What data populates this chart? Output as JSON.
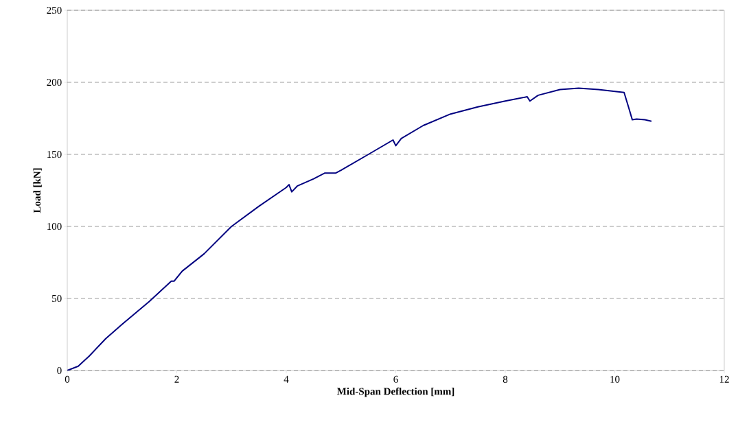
{
  "chart_data": {
    "type": "line",
    "xlabel": "Mid-Span Deflection [mm]",
    "ylabel": "Load [kN]",
    "xlim": [
      0,
      12
    ],
    "ylim": [
      0,
      250
    ],
    "xticks": [
      0,
      2,
      4,
      6,
      8,
      10,
      12
    ],
    "yticks": [
      0,
      50,
      100,
      150,
      200,
      250
    ],
    "grid": "y",
    "marker": "none",
    "line_style": "solid",
    "series": [
      {
        "color": "#000080",
        "x": [
          0,
          0.2,
          0.4,
          0.7,
          1.0,
          1.5,
          1.9,
          1.95,
          2.1,
          2.5,
          3.0,
          3.5,
          4.0,
          4.05,
          4.1,
          4.2,
          4.5,
          4.7,
          4.9,
          5.0,
          5.5,
          5.95,
          6.0,
          6.1,
          6.5,
          7.0,
          7.5,
          8.0,
          8.4,
          8.45,
          8.6,
          9.0,
          9.34,
          9.7,
          10.17,
          10.25,
          10.32,
          10.4,
          10.55,
          10.67
        ],
        "values": [
          0,
          3,
          10,
          22,
          32,
          48,
          62,
          62,
          69,
          81,
          100,
          114,
          127,
          129,
          124,
          128,
          133,
          137,
          137,
          139,
          150,
          160,
          156,
          161,
          170,
          178,
          183,
          187,
          190,
          187,
          191,
          195,
          196,
          195,
          193,
          183,
          174,
          174.5,
          174,
          173
        ]
      }
    ]
  }
}
